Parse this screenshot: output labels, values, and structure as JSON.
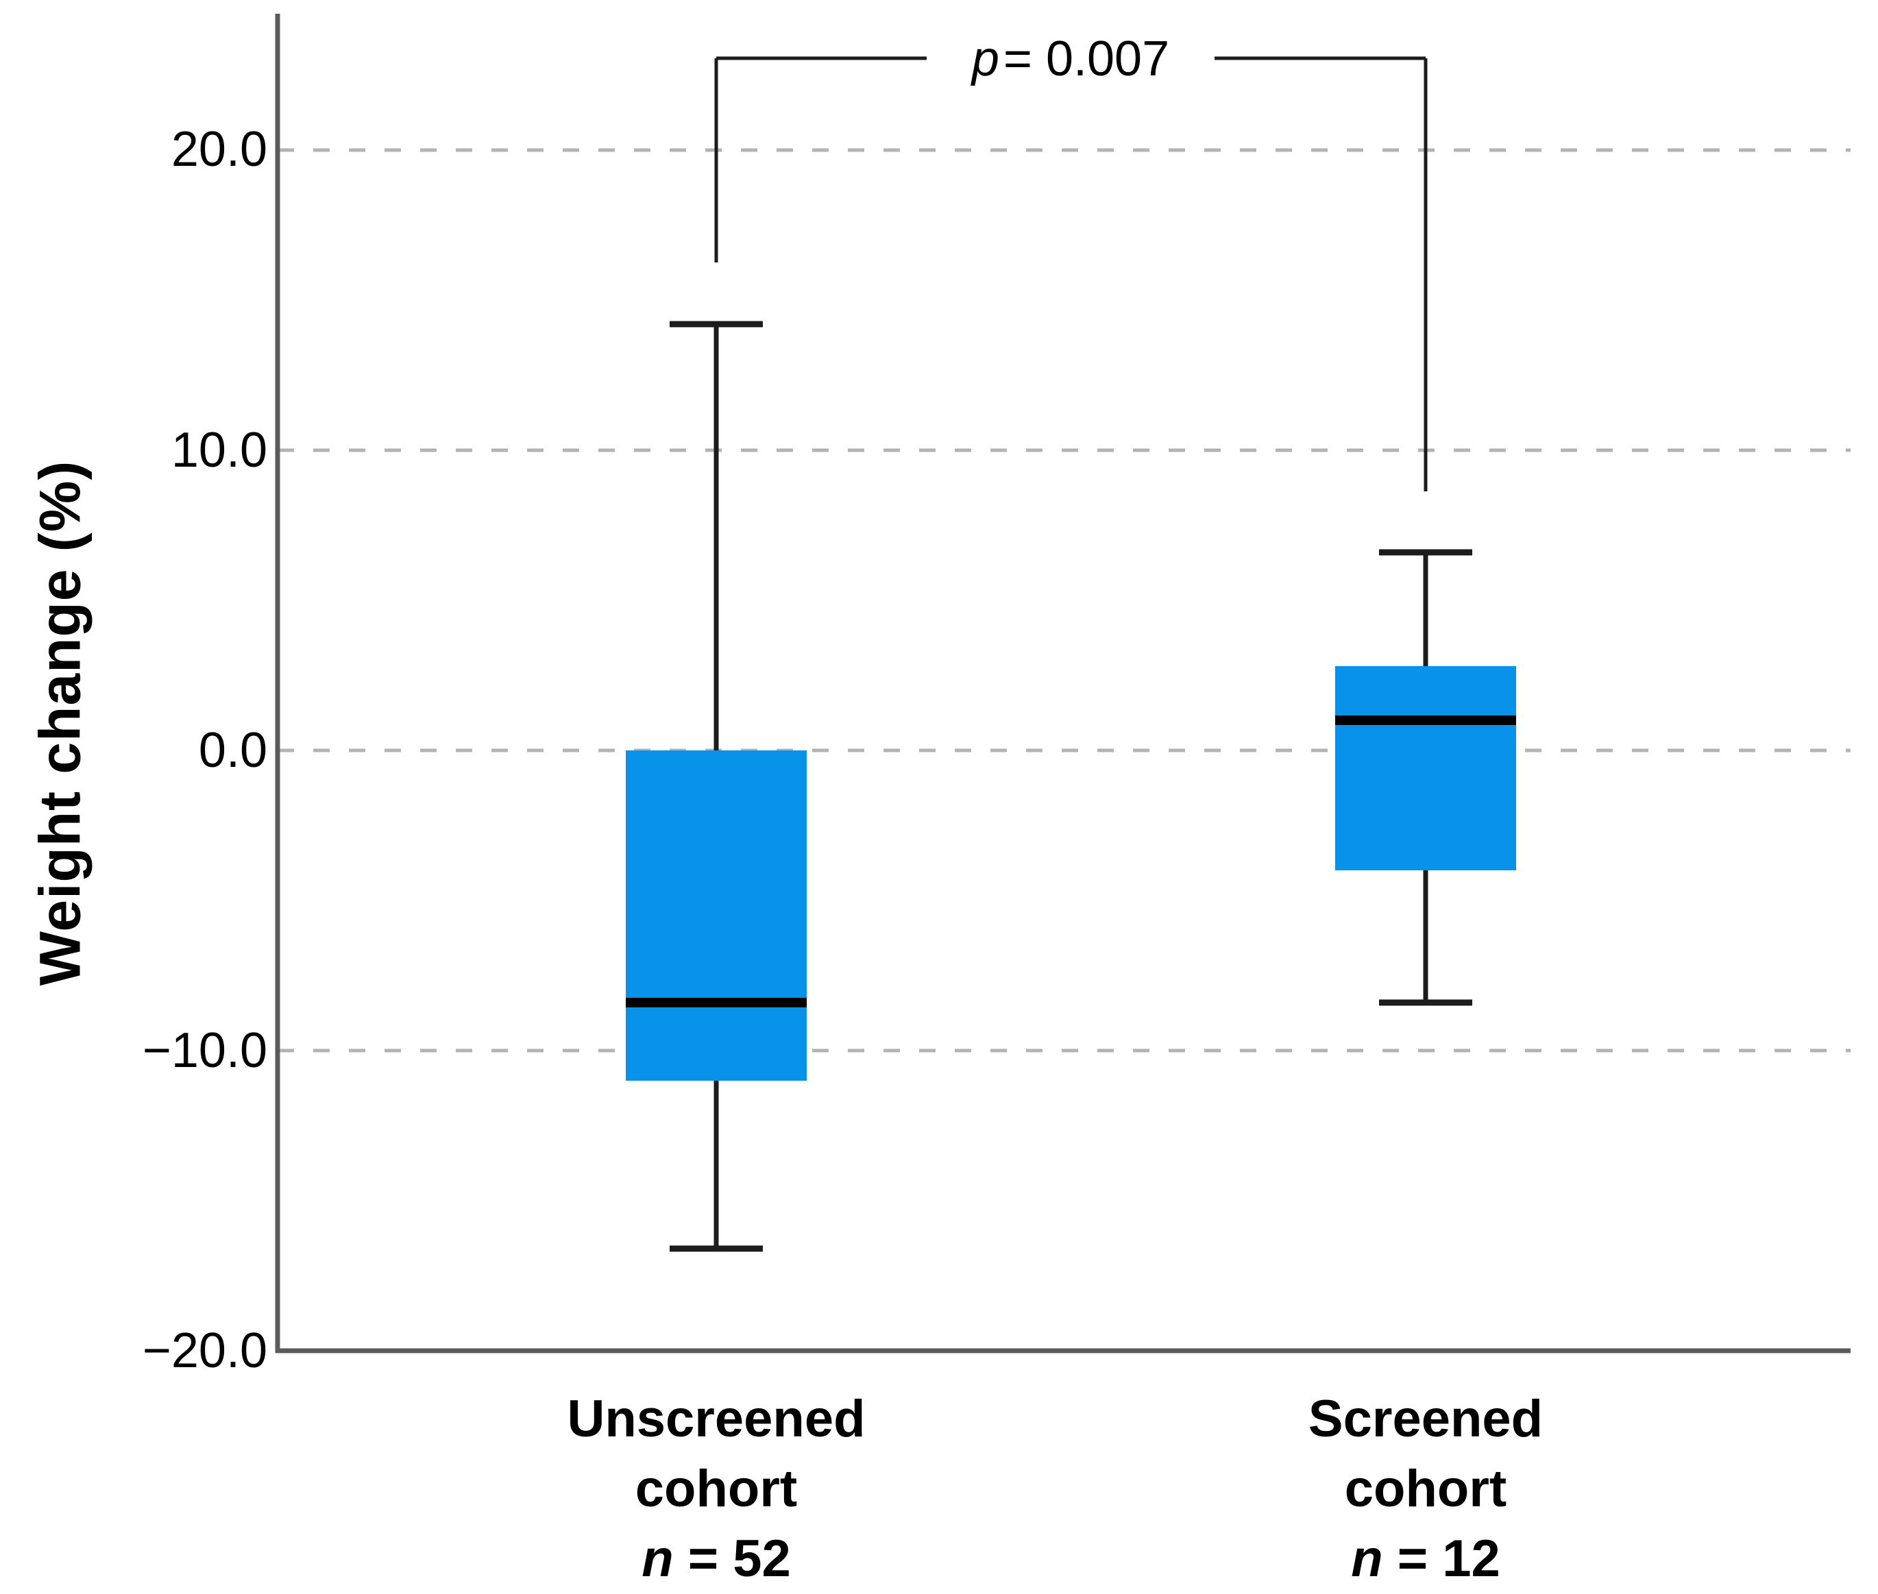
{
  "figure": {
    "p_label": {
      "symbol": "p",
      "rest": "= 0.007"
    }
  },
  "chart_data": {
    "type": "box",
    "title": "",
    "xlabel": "",
    "ylabel": "Weight change (%)",
    "ylim": [
      -20,
      25
    ],
    "yticks": [
      20,
      10,
      0,
      -10,
      -20
    ],
    "ytick_labels": [
      "20.0",
      "10.0",
      "0.0",
      "−10.0",
      "−20.0"
    ],
    "grid": "horizontal dashed gridlines at ticks, no top/right border",
    "legend": "none",
    "significance": {
      "pair": [
        "Unscreened cohort",
        "Screened cohort"
      ],
      "label": "p = 0.007"
    },
    "series": [
      {
        "name": "Unscreened cohort",
        "n": 52,
        "min": -16.6,
        "q1": -11.0,
        "median": -8.4,
        "q3": 0.0,
        "max": 14.2
      },
      {
        "name": "Screened cohort",
        "n": 12,
        "min": -8.4,
        "q1": -4.0,
        "median": 1.0,
        "q3": 2.8,
        "max": 6.6
      }
    ],
    "colors": {
      "box_fill": "#0892ea",
      "median_line": "#000000",
      "whisker": "#1c1c1c",
      "gridline": "#b3b3b3",
      "axis": "#5a5a5a",
      "text": "#000000"
    }
  },
  "categories": [
    {
      "line1": "Unscreened",
      "line2": "cohort",
      "n_italic": "n",
      "n_rest": " = 52"
    },
    {
      "line1": "Screened",
      "line2": "cohort",
      "n_italic": "n",
      "n_rest": " = 12"
    }
  ]
}
